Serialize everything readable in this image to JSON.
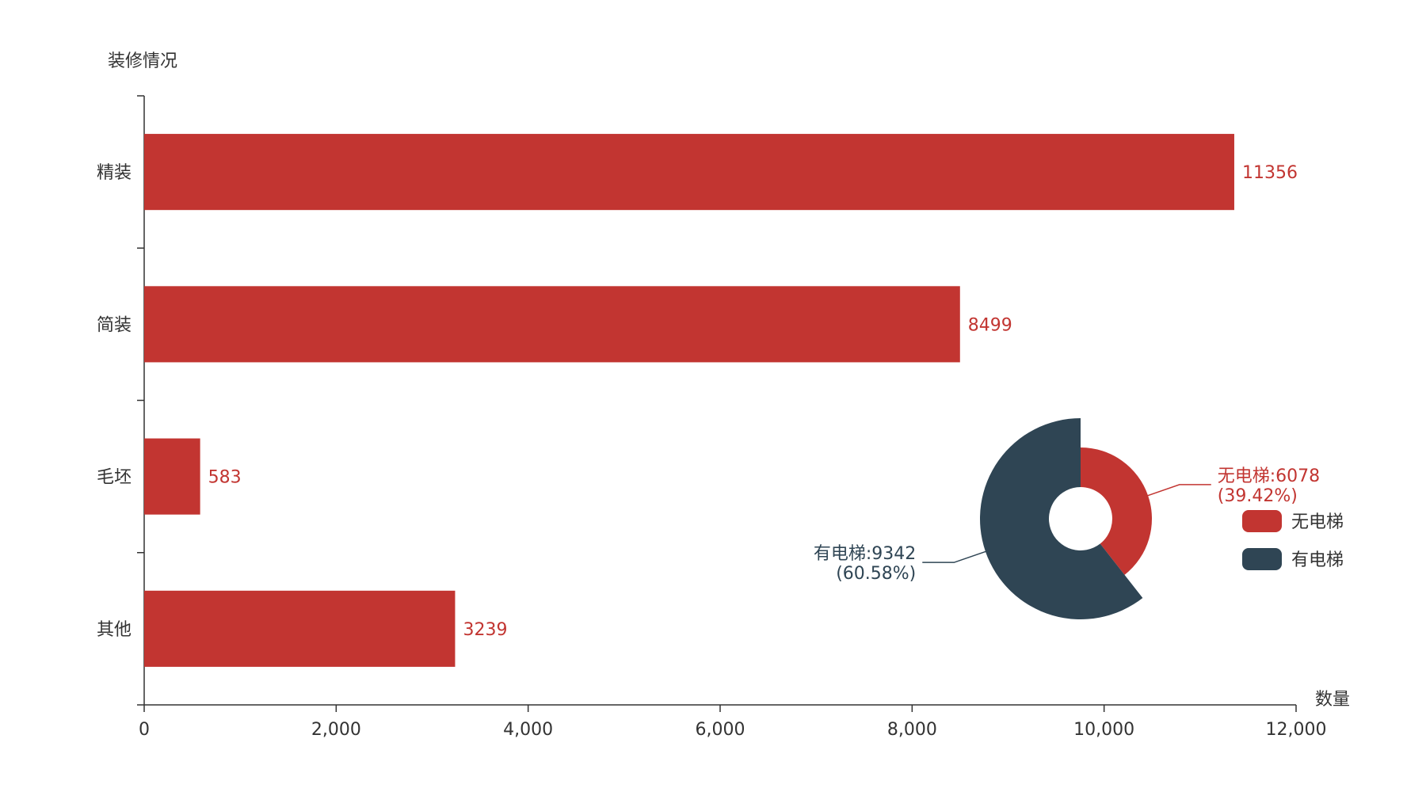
{
  "chart_data": [
    {
      "type": "bar",
      "orientation": "horizontal",
      "ylabel": "装修情况",
      "xlabel": "数量",
      "categories": [
        "精装",
        "简装",
        "毛坯",
        "其他"
      ],
      "values": [
        11356,
        8499,
        583,
        3239
      ],
      "xlim": [
        0,
        12000
      ],
      "xticks": [
        0,
        2000,
        4000,
        6000,
        8000,
        10000,
        12000
      ],
      "xtick_labels": [
        "0",
        "2,000",
        "4,000",
        "6,000",
        "8,000",
        "10,000",
        "12,000"
      ],
      "grid": false,
      "color": "#c23531"
    },
    {
      "type": "pie",
      "style": "rose",
      "slices": [
        {
          "name": "无电梯",
          "value": 6078,
          "percent": "39.42%",
          "label_line1": "无电梯:6078",
          "label_line2": "(39.42%)",
          "color": "#c23531"
        },
        {
          "name": "有电梯",
          "value": 9342,
          "percent": "60.58%",
          "label_line1": "有电梯:9342",
          "label_line2": "(60.58%)",
          "color": "#2f4554"
        }
      ],
      "legend": {
        "position": "right",
        "items": [
          "无电梯",
          "有电梯"
        ]
      }
    }
  ]
}
